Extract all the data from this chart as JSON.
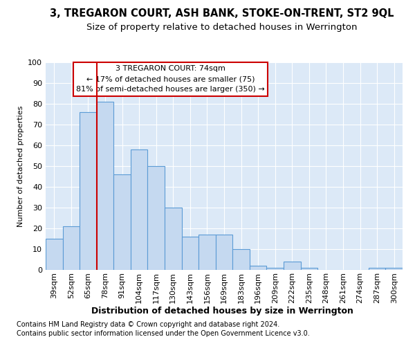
{
  "title1": "3, TREGARON COURT, ASH BANK, STOKE-ON-TRENT, ST2 9QL",
  "title2": "Size of property relative to detached houses in Werrington",
  "xlabel": "Distribution of detached houses by size in Werrington",
  "ylabel": "Number of detached properties",
  "categories": [
    "39sqm",
    "52sqm",
    "65sqm",
    "78sqm",
    "91sqm",
    "104sqm",
    "117sqm",
    "130sqm",
    "143sqm",
    "156sqm",
    "169sqm",
    "183sqm",
    "196sqm",
    "209sqm",
    "222sqm",
    "235sqm",
    "248sqm",
    "261sqm",
    "274sqm",
    "287sqm",
    "300sqm"
  ],
  "values": [
    15,
    21,
    76,
    81,
    46,
    58,
    50,
    30,
    16,
    17,
    17,
    10,
    2,
    1,
    4,
    1,
    0,
    0,
    0,
    1,
    1
  ],
  "bar_color": "#c5d9f0",
  "bar_edge_color": "#5b9bd5",
  "vline_x": 2.5,
  "vline_color": "#cc0000",
  "annotation_text": "3 TREGARON COURT: 74sqm\n← 17% of detached houses are smaller (75)\n81% of semi-detached houses are larger (350) →",
  "annotation_box_color": "#ffffff",
  "annotation_box_edge": "#cc0000",
  "footer1": "Contains HM Land Registry data © Crown copyright and database right 2024.",
  "footer2": "Contains public sector information licensed under the Open Government Licence v3.0.",
  "bg_color": "#ffffff",
  "plot_bg_color": "#dce9f7",
  "ylim": [
    0,
    100
  ],
  "grid_color": "#ffffff",
  "title1_fontsize": 10.5,
  "title2_fontsize": 9.5,
  "xlabel_fontsize": 9,
  "ylabel_fontsize": 8,
  "tick_fontsize": 8,
  "footer_fontsize": 7
}
